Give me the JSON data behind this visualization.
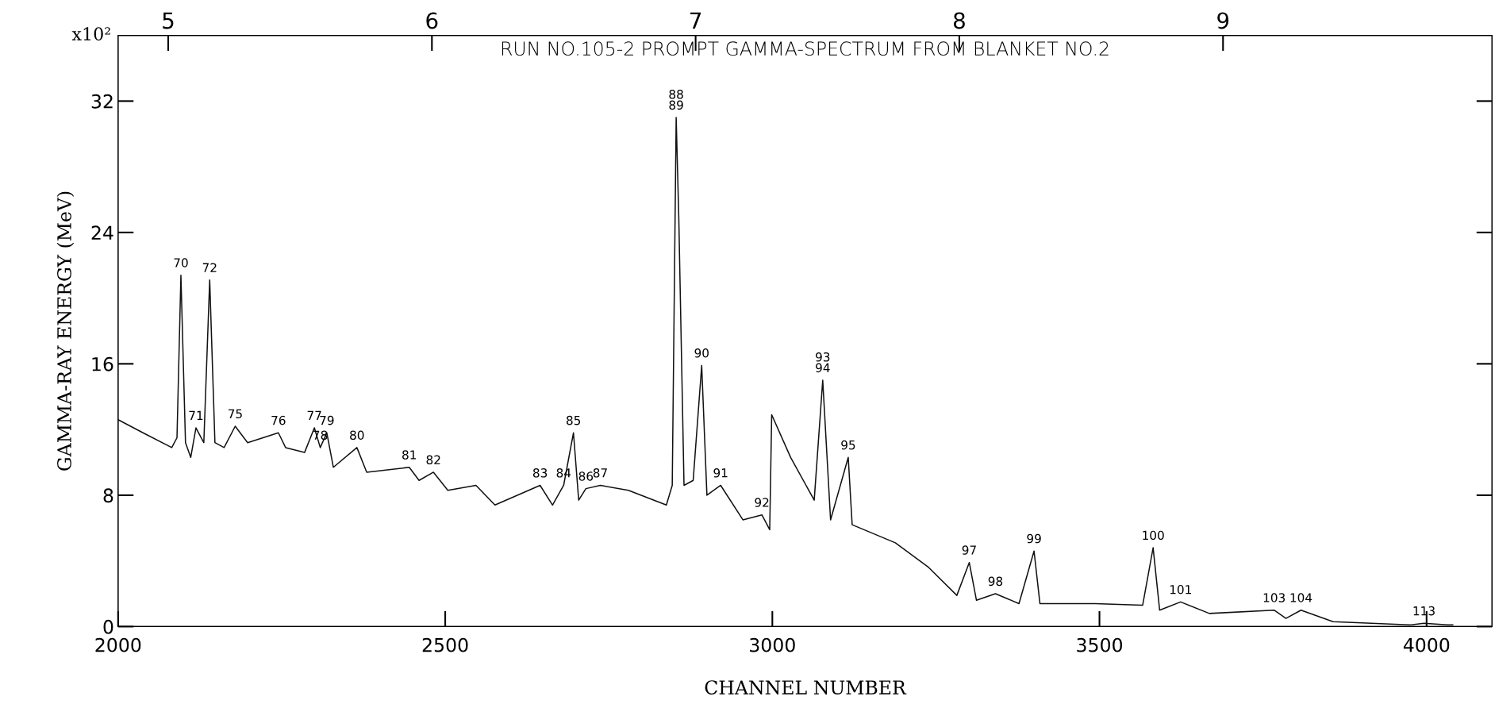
{
  "chart_data": {
    "type": "line",
    "title": "RUN NO.105-2 PROMPT GAMMA-SPECTRUM FROM BLANKET NO.2",
    "xlabel": "CHANNEL NUMBER",
    "ylabel": "GAMMA-RAY ENERGY (MeV)",
    "x": [
      2000,
      2038,
      2082,
      2090,
      2096,
      2103,
      2111,
      2119,
      2131,
      2140,
      2148,
      2162,
      2179,
      2198,
      2245,
      2256,
      2285,
      2300,
      2309,
      2319,
      2329,
      2365,
      2380,
      2445,
      2460,
      2482,
      2504,
      2547,
      2576,
      2645,
      2664,
      2681,
      2696,
      2704,
      2715,
      2737,
      2780,
      2838,
      2847,
      2853,
      2857,
      2865,
      2879,
      2892,
      2900,
      2921,
      2955,
      2984,
      2996,
      2999,
      3028,
      3064,
      3077,
      3089,
      3116,
      3122,
      3188,
      3239,
      3282,
      3301,
      3312,
      3341,
      3377,
      3400,
      3409,
      3493,
      3566,
      3582,
      3592,
      3624,
      3668,
      3767,
      3785,
      3808,
      3857,
      3974,
      3996,
      4032,
      4040
    ],
    "series": [
      {
        "color": "#111111",
        "values": [
          12.6,
          11.8,
          10.9,
          11.5,
          21.4,
          11.2,
          10.3,
          12.1,
          11.2,
          21.1,
          11.2,
          10.9,
          12.2,
          11.2,
          11.8,
          10.9,
          10.6,
          12.1,
          10.9,
          11.8,
          9.7,
          10.9,
          9.4,
          9.7,
          8.9,
          9.4,
          8.3,
          8.6,
          7.4,
          8.6,
          7.4,
          8.6,
          11.8,
          7.7,
          8.4,
          8.6,
          8.3,
          7.4,
          8.6,
          31.0,
          24.9,
          8.6,
          8.9,
          15.9,
          8.0,
          8.6,
          6.5,
          6.8,
          5.9,
          12.9,
          10.3,
          7.7,
          15.0,
          6.5,
          10.3,
          6.2,
          5.1,
          3.6,
          1.9,
          3.9,
          1.6,
          2.0,
          1.4,
          4.6,
          1.4,
          1.4,
          1.3,
          4.8,
          1.0,
          1.5,
          0.8,
          1.0,
          0.5,
          1.0,
          0.3,
          0.1,
          0.2,
          0.1,
          0.1
        ]
      }
    ],
    "xlim": [
      2000,
      4100
    ],
    "xticks": [
      2000,
      2500,
      3000,
      3500,
      4000
    ],
    "ylim": [
      0,
      36
    ],
    "yticks": [
      0,
      8,
      16,
      24,
      32
    ],
    "x2lim": [
      4.81,
      10.02
    ],
    "x2ticks": [
      5,
      6,
      7,
      8,
      9
    ],
    "grid": false,
    "legend": false,
    "marker": "none",
    "line_style": "solid",
    "annotations": [
      "x10²",
      {
        "text": "70",
        "x": 2096,
        "y": 21.4
      },
      {
        "text": "71",
        "x": 2119,
        "y": 12.1
      },
      {
        "text": "72",
        "x": 2140,
        "y": 21.1
      },
      {
        "text": "75",
        "x": 2179,
        "y": 12.2
      },
      {
        "text": "76",
        "x": 2245,
        "y": 11.8
      },
      {
        "text": "77",
        "x": 2300,
        "y": 12.1
      },
      {
        "text": "78",
        "x": 2309,
        "y": 10.9
      },
      {
        "text": "79",
        "x": 2319,
        "y": 11.8
      },
      {
        "text": "80",
        "x": 2365,
        "y": 10.9
      },
      {
        "text": "81",
        "x": 2445,
        "y": 9.7
      },
      {
        "text": "82",
        "x": 2482,
        "y": 9.4
      },
      {
        "text": "83",
        "x": 2645,
        "y": 8.6
      },
      {
        "text": "84",
        "x": 2681,
        "y": 8.6
      },
      {
        "text": "85",
        "x": 2696,
        "y": 11.8
      },
      {
        "text": "86",
        "x": 2715,
        "y": 8.4
      },
      {
        "text": "87",
        "x": 2737,
        "y": 8.6
      },
      {
        "text": "88\n89",
        "x": 2853,
        "y": 31.0
      },
      {
        "text": "90",
        "x": 2892,
        "y": 15.9
      },
      {
        "text": "91",
        "x": 2921,
        "y": 8.6
      },
      {
        "text": "92",
        "x": 2984,
        "y": 6.8
      },
      {
        "text": "93\n94",
        "x": 3077,
        "y": 15.0
      },
      {
        "text": "95",
        "x": 3116,
        "y": 10.3
      },
      {
        "text": "97",
        "x": 3301,
        "y": 3.9
      },
      {
        "text": "98",
        "x": 3341,
        "y": 2.0
      },
      {
        "text": "99",
        "x": 3400,
        "y": 4.6
      },
      {
        "text": "100",
        "x": 3582,
        "y": 4.8
      },
      {
        "text": "101",
        "x": 3624,
        "y": 1.5
      },
      {
        "text": "103",
        "x": 3767,
        "y": 1.0
      },
      {
        "text": "104",
        "x": 3808,
        "y": 1.0
      },
      {
        "text": "113",
        "x": 3996,
        "y": 0.2
      }
    ]
  }
}
